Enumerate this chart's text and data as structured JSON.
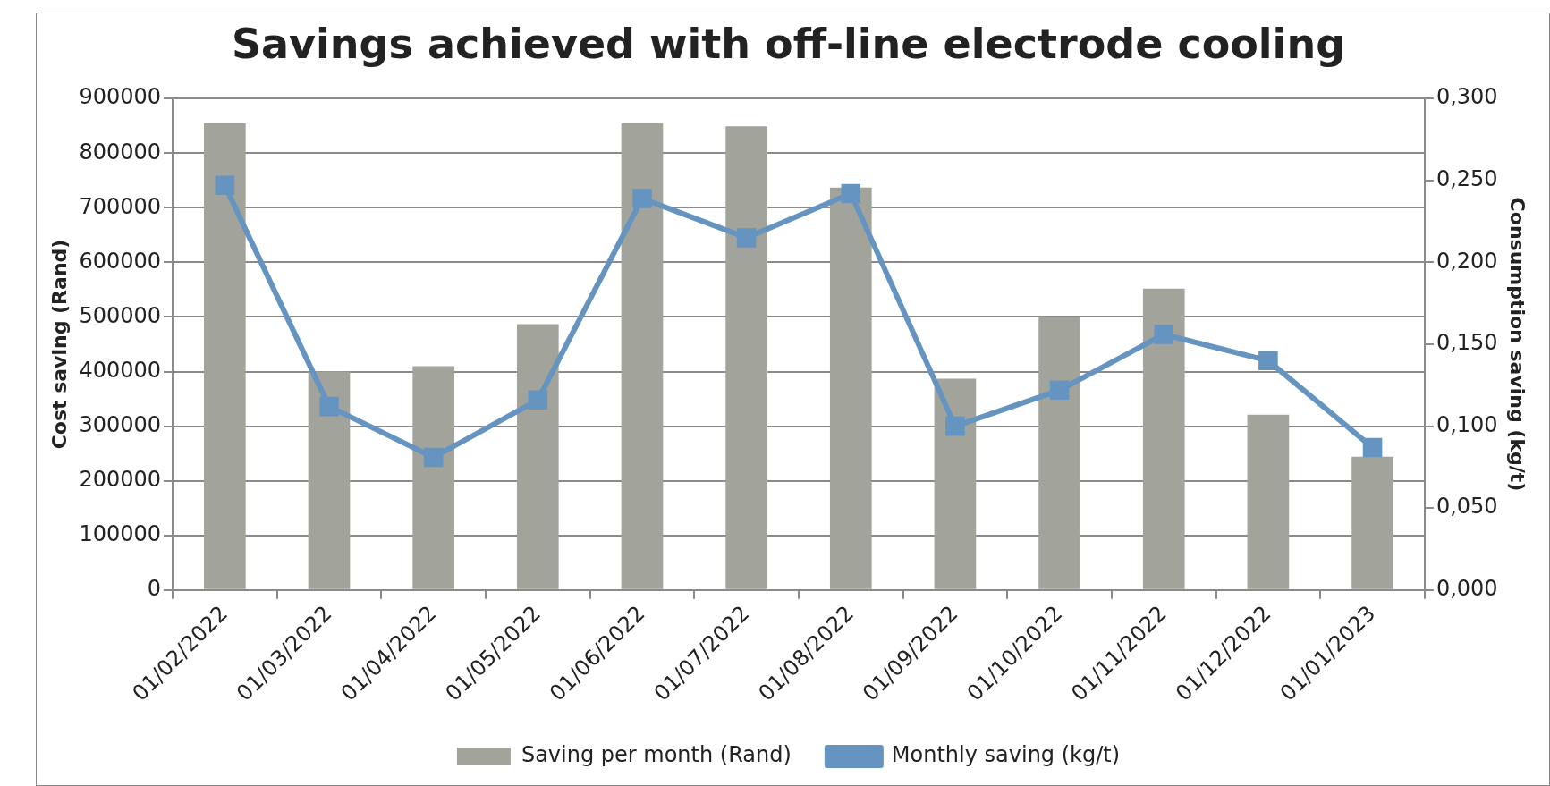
{
  "chart_data": {
    "type": "bar",
    "title": "Savings achieved with off-line electrode cooling",
    "ylabel": "Cost saving (Rand)",
    "y2label": "Consumption saving (kg/t)",
    "categories": [
      "01/02/2022",
      "01/03/2022",
      "01/04/2022",
      "01/05/2022",
      "01/06/2022",
      "01/07/2022",
      "01/08/2022",
      "01/09/2022",
      "01/10/2022",
      "01/11/2022",
      "01/12/2022",
      "01/01/2023"
    ],
    "series": [
      {
        "name": "Saving per month (Rand)",
        "color": "#a2a39a",
        "values": [
          855000,
          400000,
          410000,
          487000,
          855000,
          849000,
          737000,
          387000,
          500000,
          552000,
          321000,
          244000
        ]
      },
      {
        "name": "Monthly saving (kg/t)",
        "type": "line",
        "axis": "y2",
        "color": "#6694c1",
        "marker": "square",
        "values": [
          0.247,
          0.112,
          0.081,
          0.116,
          0.239,
          0.215,
          0.242,
          0.1,
          0.122,
          0.156,
          0.14,
          0.087
        ]
      }
    ],
    "ylim": [
      0,
      900000
    ],
    "yticks": [
      0,
      100000,
      200000,
      300000,
      400000,
      500000,
      600000,
      700000,
      800000,
      900000
    ],
    "y2lim": [
      0,
      0.3
    ],
    "y2ticks": [
      {
        "value": 0,
        "label": "0,000"
      },
      {
        "value": 0.05,
        "label": "0,050"
      },
      {
        "value": 0.1,
        "label": "0,100"
      },
      {
        "value": 0.15,
        "label": "0,150"
      },
      {
        "value": 0.2,
        "label": "0,200"
      },
      {
        "value": 0.25,
        "label": "0,250"
      },
      {
        "value": 0.3,
        "label": "0,300"
      }
    ],
    "grid": "y",
    "legend": "bottom"
  }
}
